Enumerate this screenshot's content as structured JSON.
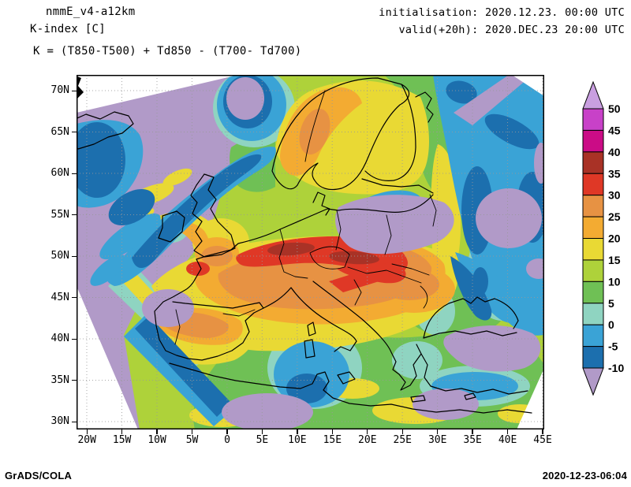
{
  "header": {
    "model": "nmmE_v4-a12km",
    "field": "K-index [C]",
    "formula": "K = (T850-T500) + Td850 - (T700- Td700)",
    "init_line": "initialisation: 2020.12.23. 00:00 UTC",
    "valid_line": "valid(+20h): 2020.DEC.23 20:00 UTC"
  },
  "axes": {
    "lat_labels": [
      "70N",
      "65N",
      "60N",
      "55N",
      "50N",
      "45N",
      "40N",
      "35N",
      "30N"
    ],
    "lon_labels": [
      "20W",
      "15W",
      "10W",
      "5W",
      "0",
      "5E",
      "10E",
      "15E",
      "20E",
      "25E",
      "30E",
      "35E",
      "40E",
      "45E"
    ]
  },
  "colorbar": {
    "labels": [
      "50",
      "45",
      "40",
      "35",
      "30",
      "25",
      "20",
      "15",
      "10",
      "5",
      "0",
      "-5",
      "-10"
    ],
    "segment_colors": [
      "#c841c8",
      "#cb0c86",
      "#a93226",
      "#df3826",
      "#e79243",
      "#f3ab32",
      "#e9d934",
      "#aed23a",
      "#6fc055",
      "#8fd4c1",
      "#3aa3d6",
      "#1c6fae"
    ],
    "above_color": "#c99fe0",
    "below_color": "#b19ac8"
  },
  "palette": {
    "lavender": "#b19ac8",
    "violetTop": "#c99fe0",
    "magenta": "#c841c8",
    "pink": "#cb0c86",
    "brick": "#a93226",
    "red": "#df3826",
    "orangeDeep": "#e79243",
    "amber": "#f3ab32",
    "yellow": "#e9d934",
    "ygreen": "#aed23a",
    "green": "#6fc055",
    "teal": "#8fd4c1",
    "cyan": "#3aa3d6",
    "blue": "#1c6fae",
    "paper": "#ffffff",
    "ink": "#000000"
  },
  "footer": {
    "left": "GrADS/COLA",
    "right": "2020-12-23-06:04"
  }
}
